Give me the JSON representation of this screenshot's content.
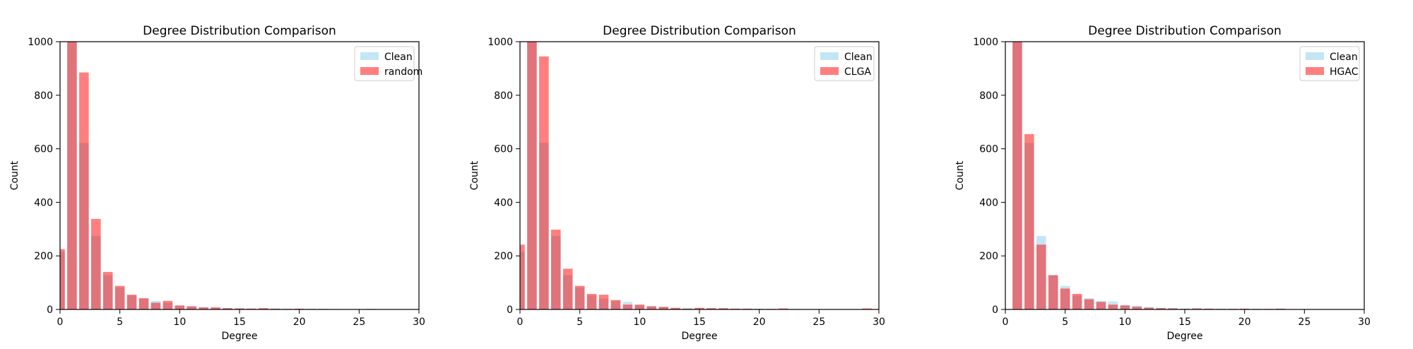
{
  "chart_data": [
    {
      "type": "bar",
      "title": "Degree Distribution Comparison",
      "xlabel": "Degree",
      "ylabel": "Count",
      "xlim": [
        0,
        30
      ],
      "ylim": [
        0,
        1000
      ],
      "xticks": [
        "0",
        "5",
        "10",
        "15",
        "20",
        "25",
        "30"
      ],
      "yticks": [
        "0",
        "200",
        "400",
        "600",
        "800",
        "1000"
      ],
      "legend_position": "top-right",
      "series": [
        {
          "name": "Clean",
          "color": "#87ceeb",
          "opacity": 0.5,
          "x": [
            0,
            1,
            2,
            3,
            4,
            5,
            6,
            7,
            8,
            9,
            10,
            11,
            12,
            13,
            14,
            15,
            16,
            17,
            18,
            19,
            20,
            21,
            22,
            23,
            24,
            25,
            26
          ],
          "values": [
            215,
            1000,
            622,
            274,
            128,
            82,
            52,
            40,
            32,
            25,
            14,
            10,
            7,
            6,
            5,
            4,
            4,
            3,
            3,
            3,
            2,
            2,
            2,
            2,
            1,
            1,
            1
          ]
        },
        {
          "name": "random",
          "color": "#ff0000",
          "opacity": 0.5,
          "x": [
            0,
            1,
            2,
            3,
            4,
            5,
            6,
            7,
            8,
            9,
            10,
            11,
            12,
            13,
            14,
            15,
            16,
            17,
            18,
            19,
            20,
            21,
            22,
            23,
            24,
            25,
            26
          ],
          "values": [
            225,
            1000,
            885,
            338,
            140,
            88,
            55,
            42,
            25,
            32,
            15,
            12,
            8,
            8,
            5,
            4,
            3,
            5,
            3,
            2,
            3,
            2,
            2,
            1,
            1,
            1,
            2
          ]
        }
      ]
    },
    {
      "type": "bar",
      "title": "Degree Distribution Comparison",
      "xlabel": "Degree",
      "ylabel": "Count",
      "xlim": [
        0,
        30
      ],
      "ylim": [
        0,
        1000
      ],
      "xticks": [
        "0",
        "5",
        "10",
        "15",
        "20",
        "25",
        "30"
      ],
      "yticks": [
        "0",
        "200",
        "400",
        "600",
        "800",
        "1000"
      ],
      "legend_position": "top-right",
      "series": [
        {
          "name": "Clean",
          "color": "#87ceeb",
          "opacity": 0.5,
          "x": [
            0,
            1,
            2,
            3,
            4,
            5,
            6,
            7,
            8,
            9,
            10,
            11,
            12,
            13,
            14,
            15,
            16,
            17,
            18,
            19,
            20,
            21,
            22,
            23,
            24,
            25,
            26,
            27,
            28,
            29
          ],
          "values": [
            215,
            1000,
            622,
            274,
            128,
            82,
            52,
            40,
            32,
            28,
            16,
            12,
            8,
            6,
            5,
            5,
            4,
            3,
            3,
            3,
            2,
            2,
            2,
            2,
            1,
            1,
            1,
            1,
            1,
            1
          ]
        },
        {
          "name": "CLGA",
          "color": "#ff0000",
          "opacity": 0.5,
          "x": [
            0,
            1,
            2,
            3,
            4,
            5,
            6,
            7,
            8,
            9,
            10,
            11,
            12,
            13,
            14,
            15,
            16,
            17,
            18,
            19,
            20,
            21,
            22,
            23,
            24,
            25,
            26,
            27,
            28,
            29
          ],
          "values": [
            242,
            1000,
            945,
            298,
            152,
            88,
            58,
            55,
            35,
            18,
            18,
            12,
            10,
            6,
            3,
            6,
            5,
            5,
            3,
            3,
            2,
            2,
            4,
            1,
            1,
            1,
            1,
            1,
            1,
            4
          ]
        }
      ]
    },
    {
      "type": "bar",
      "title": "Degree Distribution Comparison",
      "xlabel": "Degree",
      "ylabel": "Count",
      "xlim": [
        0,
        30
      ],
      "ylim": [
        0,
        1000
      ],
      "xticks": [
        "0",
        "5",
        "10",
        "15",
        "20",
        "25",
        "30"
      ],
      "yticks": [
        "0",
        "200",
        "400",
        "600",
        "800",
        "1000"
      ],
      "legend_position": "top-right",
      "series": [
        {
          "name": "Clean",
          "color": "#87ceeb",
          "opacity": 0.5,
          "x": [
            1,
            2,
            3,
            4,
            5,
            6,
            7,
            8,
            9,
            10,
            11,
            12,
            13,
            14,
            15,
            16,
            17,
            18,
            19,
            20,
            21,
            22,
            23,
            24
          ],
          "values": [
            1000,
            622,
            274,
            128,
            88,
            52,
            42,
            32,
            30,
            16,
            14,
            8,
            6,
            5,
            4,
            4,
            3,
            3,
            3,
            2,
            2,
            2,
            2,
            1
          ]
        },
        {
          "name": "HGAC",
          "color": "#ff0000",
          "opacity": 0.5,
          "x": [
            1,
            2,
            3,
            4,
            5,
            6,
            7,
            8,
            9,
            10,
            11,
            12,
            13,
            14,
            15,
            16,
            17,
            18,
            19,
            20,
            21,
            22,
            23,
            24
          ],
          "values": [
            1000,
            655,
            242,
            128,
            78,
            58,
            38,
            28,
            18,
            15,
            10,
            7,
            5,
            4,
            2,
            4,
            3,
            2,
            2,
            3,
            2,
            2,
            3,
            1
          ]
        }
      ]
    }
  ]
}
